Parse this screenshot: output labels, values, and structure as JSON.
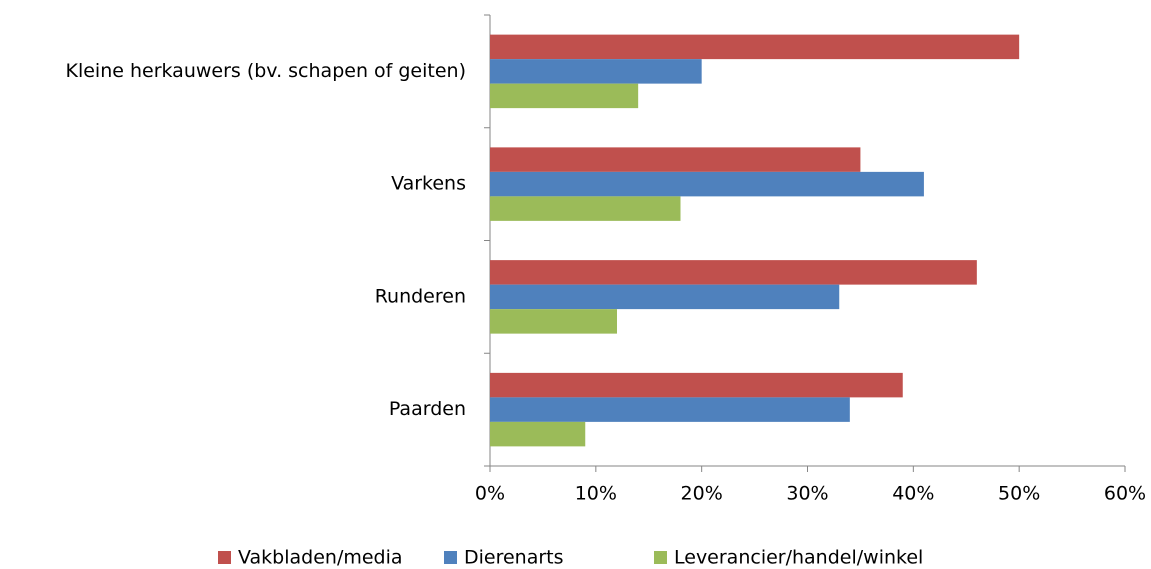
{
  "chart_data": {
    "type": "bar",
    "orientation": "horizontal",
    "categories": [
      "Kleine herkauwers (bv. schapen of geiten)",
      "Varkens",
      "Runderen",
      "Paarden"
    ],
    "series": [
      {
        "name": "Vakbladen/media",
        "color": "#c0504d",
        "values": [
          50,
          35,
          46,
          39
        ]
      },
      {
        "name": "Dierenarts",
        "color": "#4f81bd",
        "values": [
          20,
          41,
          33,
          34
        ]
      },
      {
        "name": "Leverancier/handel/winkel",
        "color": "#9bbb59",
        "values": [
          14,
          18,
          12,
          9
        ]
      }
    ],
    "xlim": [
      0,
      60
    ],
    "xticks": [
      {
        "value": 0,
        "label": "0%"
      },
      {
        "value": 10,
        "label": "10%"
      },
      {
        "value": 20,
        "label": "20%"
      },
      {
        "value": 30,
        "label": "30%"
      },
      {
        "value": 40,
        "label": "40%"
      },
      {
        "value": 50,
        "label": "50%"
      },
      {
        "value": 60,
        "label": "60%"
      }
    ],
    "grid": false,
    "legend": "bottom"
  }
}
